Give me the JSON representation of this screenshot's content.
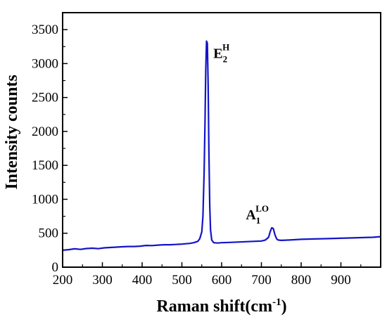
{
  "chart_data": {
    "type": "line",
    "title": "",
    "xlabel": "Raman shift(cm",
    "xlabel_sup": "-1",
    "xlabel_close": ")",
    "ylabel": "Intensity counts",
    "xlim": [
      200,
      1000
    ],
    "ylim": [
      0,
      3750
    ],
    "x_ticks": [
      200,
      300,
      400,
      500,
      600,
      700,
      800,
      900
    ],
    "y_ticks": [
      0,
      500,
      1000,
      1500,
      2000,
      2500,
      3000,
      3500
    ],
    "x_tick_labels": [
      "200",
      "300",
      "400",
      "500",
      "600",
      "700",
      "800",
      "900"
    ],
    "y_tick_labels": [
      "0",
      "500",
      "1000",
      "1500",
      "2000",
      "2500",
      "3000",
      "3500"
    ],
    "grid": false,
    "legend": "none",
    "series_color": "#1414c8",
    "series": [
      {
        "x": [
          200,
          215,
          230,
          245,
          260,
          275,
          290,
          305,
          320,
          335,
          350,
          365,
          380,
          395,
          410,
          425,
          440,
          455,
          470,
          485,
          500,
          510,
          520,
          530,
          540,
          545,
          550,
          553,
          556,
          558,
          560,
          562,
          564,
          566,
          568,
          570,
          572,
          575,
          580,
          590,
          600,
          620,
          640,
          660,
          680,
          700,
          710,
          718,
          722,
          726,
          730,
          734,
          738,
          742,
          750,
          770,
          800,
          830,
          860,
          890,
          920,
          950,
          980,
          1000
        ],
        "y": [
          250,
          258,
          270,
          262,
          275,
          280,
          272,
          285,
          290,
          295,
          300,
          305,
          305,
          310,
          320,
          318,
          325,
          330,
          330,
          335,
          340,
          345,
          350,
          360,
          380,
          420,
          520,
          750,
          1400,
          2100,
          2900,
          3330,
          3300,
          2700,
          1700,
          900,
          550,
          400,
          360,
          355,
          360,
          365,
          370,
          375,
          380,
          385,
          400,
          440,
          520,
          580,
          570,
          480,
          420,
          400,
          395,
          400,
          410,
          415,
          420,
          425,
          430,
          435,
          440,
          450
        ]
      }
    ],
    "annotations": [
      {
        "base": "E",
        "sub": "2",
        "sup": "H",
        "x": 565,
        "y": 3330
      },
      {
        "base": "A",
        "sub": "1",
        "sup": "LO",
        "x": 728,
        "y": 580
      }
    ]
  }
}
